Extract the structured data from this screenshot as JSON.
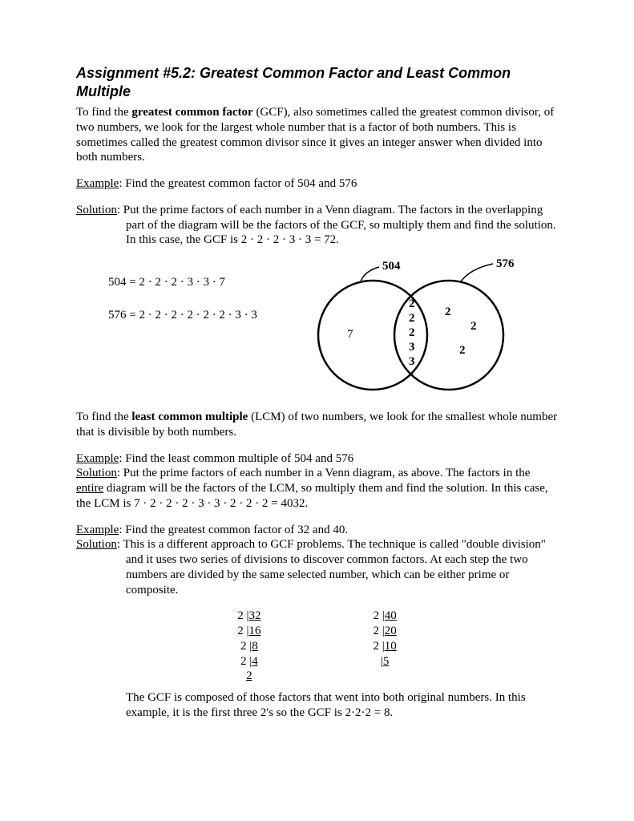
{
  "title": "Assignment #5.2: Greatest Common Factor and Least Common Multiple",
  "intro": {
    "t1": "To find the ",
    "t2": "greatest common factor",
    "t3": " (GCF), also sometimes called the greatest common divisor, of two numbers, we look for the largest whole number that is a factor of both numbers.  This is sometimes called the greatest common divisor since it gives an integer answer when divided into both numbers."
  },
  "ex1": {
    "label": "Example",
    "text": ":  Find the greatest common factor of 504 and 576"
  },
  "sol1": {
    "label": "Solution",
    "t1": ":  Put the prime factors of each number in a Venn diagram.  The factors in the overlapping part of the diagram will be the factors of the GCF, so multiply them and find the solution. In this case, the GCF is 2 · 2 · 2 · 3 · 3 = 72."
  },
  "factors": {
    "a": "504 = 2 · 2 · 2 · 3 · 3 · 7",
    "b": "576 = 2 · 2 · 2 · 2 · 2 · 2 · 3 · 3"
  },
  "venn": {
    "left_label": "504",
    "right_label": "576",
    "left_only": [
      "7"
    ],
    "middle": [
      "2",
      "2",
      "2",
      "3",
      "3"
    ],
    "right_only": [
      "2",
      "2",
      "2"
    ],
    "stroke": "#000000",
    "fill": "#ffffff",
    "text_color": "#000000",
    "circle_stroke_width": 2.5,
    "label_fontsize": 15,
    "value_fontsize": 15
  },
  "lcm": {
    "t1": "To find the ",
    "t2": "least common multiple",
    "t3": " (LCM) of two numbers, we look for the smallest whole number that is divisible by both numbers."
  },
  "ex2": {
    "label": "Example",
    "text": ":  Find the least common multiple of 504 and 576"
  },
  "sol2": {
    "label": "Solution",
    "t1": ":  Put the prime factors of each number in a Venn diagram, as above.  The factors in the ",
    "t2": "entire",
    "t3": " diagram will be the factors of the LCM, so multiply them and find the solution. In this case, the LCM is 7 · 2 · 2 · 2 · 3 · 3 · 2 · 2 · 2 = 4032."
  },
  "ex3": {
    "label": "Example",
    "text": ":  Find the greatest common factor of 32 and 40."
  },
  "sol3": {
    "label": "Solution",
    "t1": ":  This is a different approach to GCF problems.  The technique is called \"double division\" and it uses two series of divisions to discover common factors.  At each step the two numbers are divided by the same selected number, which can be either prime or composite."
  },
  "division": {
    "left": [
      {
        "d": "2 |",
        "v": "32"
      },
      {
        "d": "2 |",
        "v": "16"
      },
      {
        "d": "2 |",
        "v": "8"
      },
      {
        "d": "2 |",
        "v": "4"
      },
      {
        "d": "",
        "v": "2"
      }
    ],
    "right": [
      {
        "d": "2 |",
        "v": "40"
      },
      {
        "d": "2 |",
        "v": "20"
      },
      {
        "d": "2 |",
        "v": "10"
      },
      {
        "d": "   |",
        "v": "5"
      }
    ]
  },
  "conclusion": "The GCF is composed of those factors that went into both original numbers.  In this example, it is the first three 2's so the GCF is 2·2·2 = 8."
}
